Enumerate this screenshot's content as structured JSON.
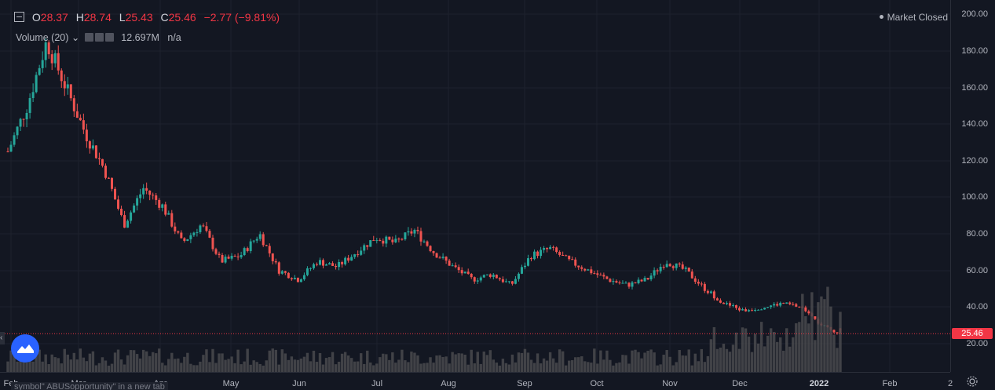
{
  "legend": {
    "open_key": "O",
    "open_val": "28.37",
    "high_key": "H",
    "high_val": "28.74",
    "low_key": "L",
    "low_val": "25.43",
    "close_key": "C",
    "close_val": "25.46",
    "change": "−2.77 (−9.81%)"
  },
  "volume_legend": {
    "label": "Volume (20)",
    "value": "12.697M",
    "na": "n/a"
  },
  "market_status": "Market Closed",
  "status_url": "symbol\" ABUSopportunity\" in a new tab",
  "price_axis": {
    "labels": [
      "200.00",
      "180.00",
      "160.00",
      "140.00",
      "120.00",
      "100.00",
      "80.00",
      "60.00",
      "40.00",
      "20.00"
    ]
  },
  "last_price": "25.46",
  "time_axis": {
    "labels": [
      "Feb",
      "Mar",
      "Apr",
      "May",
      "Jun",
      "Jul",
      "Aug",
      "Sep",
      "Oct",
      "Nov",
      "Dec",
      "2022",
      "Feb",
      "2"
    ]
  },
  "colors": {
    "up": "#26a69a",
    "down": "#ef5350",
    "background": "#131722",
    "grid": "#1e222d",
    "volume": "#4a4a4e",
    "last_price_line": "#f23645"
  },
  "icons": {
    "side_handle": "chevron-left-icon",
    "logo": "tradingview-logo-icon",
    "settings": "gear-icon"
  },
  "chart_data": {
    "type": "candlestick",
    "ylim": [
      0,
      200
    ],
    "x_categories": [
      "Feb",
      "Mar",
      "Apr",
      "May",
      "Jun",
      "Jul",
      "Aug",
      "Sep",
      "Oct",
      "Nov",
      "Dec",
      "2022"
    ],
    "series": [
      {
        "values_close_approx": [
          125,
          150,
          185,
          160,
          135,
          115,
          85,
          105,
          95,
          75,
          85,
          65,
          68,
          80,
          60,
          55,
          65,
          62,
          70,
          78,
          75,
          82,
          70,
          62,
          55,
          58,
          52,
          68,
          72,
          65,
          60,
          55,
          52,
          55,
          65,
          60,
          50,
          42,
          38,
          40,
          42,
          40,
          30,
          25.46
        ]
      }
    ],
    "last_close": 25.46
  }
}
